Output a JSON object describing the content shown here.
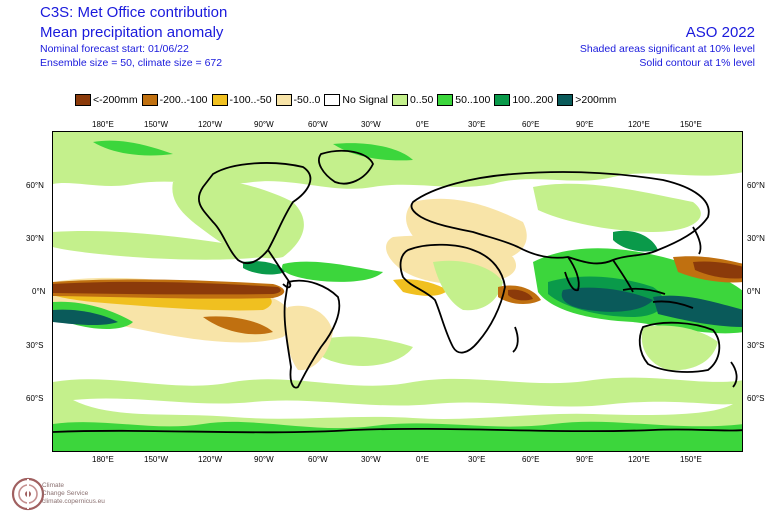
{
  "header": {
    "title": "C3S: Met Office contribution",
    "subtitle": "Mean precipitation anomaly",
    "forecast_start": "Nominal forecast start: 01/06/22",
    "ensemble": "Ensemble size = 50, climate size = 672",
    "season": "ASO 2022",
    "note_shaded": "Shaded areas significant at 10% level",
    "note_contour": "Solid contour at 1% level"
  },
  "legend": [
    {
      "label": "<-200mm",
      "color": "#8b3a0a"
    },
    {
      "label": "-200..-100",
      "color": "#c07010"
    },
    {
      "label": "-100..-50",
      "color": "#f0c020"
    },
    {
      "label": "-50..0",
      "color": "#f8e4a8"
    },
    {
      "label": "No Signal",
      "color": "#ffffff"
    },
    {
      "label": "0..50",
      "color": "#c4f08c"
    },
    {
      "label": "50..100",
      "color": "#3cd63c"
    },
    {
      "label": "100..200",
      "color": "#0a9a4a"
    },
    {
      "label": ">200mm",
      "color": "#0a5a5a"
    }
  ],
  "axes": {
    "lon_labels": [
      "180°E",
      "150°W",
      "120°W",
      "90°W",
      "60°W",
      "30°W",
      "0°E",
      "30°E",
      "60°E",
      "90°E",
      "120°E",
      "150°E"
    ],
    "lat_labels": [
      "60°N",
      "30°N",
      "0°N",
      "30°S",
      "60°S"
    ]
  },
  "logo": {
    "line1": "Climate",
    "line2": "Change Service",
    "line3": "climate.copernicus.eu"
  }
}
